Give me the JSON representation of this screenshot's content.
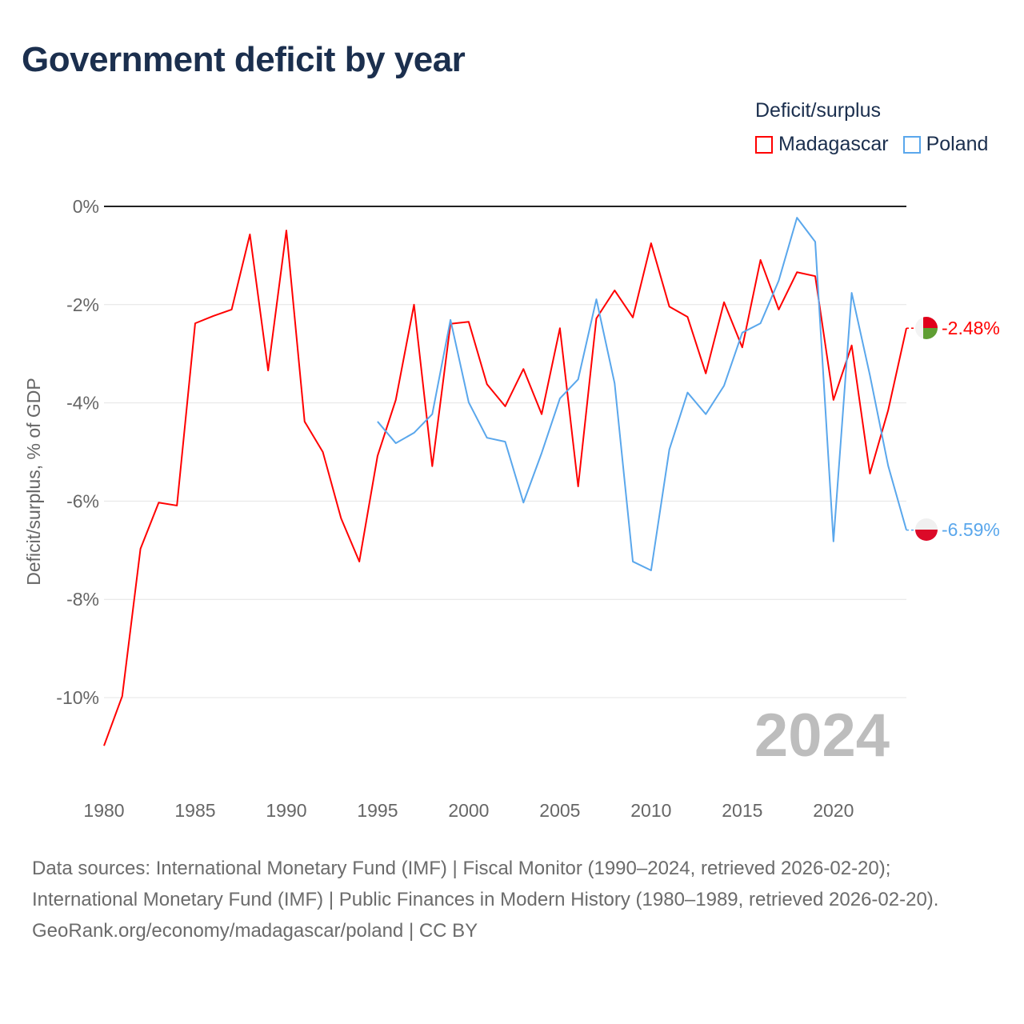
{
  "title": "Government deficit by year",
  "legend": {
    "title": "Deficit/surplus",
    "items": [
      {
        "name": "Madagascar",
        "color": "#ff0000"
      },
      {
        "name": "Poland",
        "color": "#5aa7ec"
      }
    ]
  },
  "year_label": "2024",
  "footer": {
    "sources": "Data sources: International Monetary Fund (IMF) | Fiscal Monitor (1990–2024, retrieved 2026-02-20); International Monetary Fund (IMF) | Public Finances in Modern History (1980–1989, retrieved 2026-02-20).",
    "credit": "GeoRank.org/economy/madagascar/poland | CC BY"
  },
  "chart_data": {
    "type": "line",
    "title": "Government deficit by year",
    "xlabel": "",
    "ylabel": "Deficit/surplus, % of GDP",
    "xlim": [
      1980,
      2024
    ],
    "ylim": [
      -11,
      0
    ],
    "x_ticks": [
      "1980",
      "1985",
      "1990",
      "1995",
      "2000",
      "2005",
      "2010",
      "2015",
      "2020"
    ],
    "y_ticks": [
      {
        "value": 0,
        "label": "0%"
      },
      {
        "value": -2,
        "label": "-2%"
      },
      {
        "value": -4,
        "label": "-4%"
      },
      {
        "value": -6,
        "label": "-6%"
      },
      {
        "value": -8,
        "label": "-8%"
      },
      {
        "value": -10,
        "label": "-10%"
      }
    ],
    "grid": true,
    "legend_position": "top-right",
    "series": [
      {
        "name": "Madagascar",
        "color": "#ff0000",
        "end_label": "-2.48%",
        "x": [
          1980,
          1981,
          1982,
          1983,
          1984,
          1985,
          1986,
          1987,
          1988,
          1989,
          1990,
          1991,
          1992,
          1993,
          1994,
          1995,
          1996,
          1997,
          1998,
          1999,
          2000,
          2001,
          2002,
          2003,
          2004,
          2005,
          2006,
          2007,
          2008,
          2009,
          2010,
          2011,
          2012,
          2013,
          2014,
          2015,
          2016,
          2017,
          2018,
          2019,
          2020,
          2021,
          2022,
          2023,
          2024
        ],
        "values": [
          -10.98,
          -9.97,
          -6.97,
          -6.03,
          -6.09,
          -2.38,
          -2.23,
          -2.1,
          -0.57,
          -3.34,
          -0.49,
          -4.38,
          -5.0,
          -6.35,
          -7.23,
          -5.08,
          -3.94,
          -2.0,
          -5.29,
          -2.39,
          -2.35,
          -3.62,
          -4.07,
          -3.31,
          -4.23,
          -2.48,
          -5.7,
          -2.28,
          -1.71,
          -2.26,
          -0.75,
          -2.04,
          -2.25,
          -3.4,
          -1.95,
          -2.87,
          -1.09,
          -2.1,
          -1.34,
          -1.42,
          -3.94,
          -2.83,
          -5.44,
          -4.15,
          -2.48
        ]
      },
      {
        "name": "Poland",
        "color": "#5aa7ec",
        "end_label": "-6.59%",
        "x": [
          1995,
          1996,
          1997,
          1998,
          1999,
          2000,
          2001,
          2002,
          2003,
          2004,
          2005,
          2006,
          2007,
          2008,
          2009,
          2010,
          2011,
          2012,
          2013,
          2014,
          2015,
          2016,
          2017,
          2018,
          2019,
          2020,
          2021,
          2022,
          2023,
          2024
        ],
        "values": [
          -4.38,
          -4.82,
          -4.61,
          -4.23,
          -2.31,
          -3.99,
          -4.71,
          -4.79,
          -6.03,
          -5.02,
          -3.91,
          -3.52,
          -1.89,
          -3.6,
          -7.23,
          -7.41,
          -4.95,
          -3.79,
          -4.23,
          -3.65,
          -2.57,
          -2.38,
          -1.51,
          -0.23,
          -0.72,
          -6.82,
          -1.76,
          -3.44,
          -5.28,
          -6.59
        ]
      }
    ]
  }
}
